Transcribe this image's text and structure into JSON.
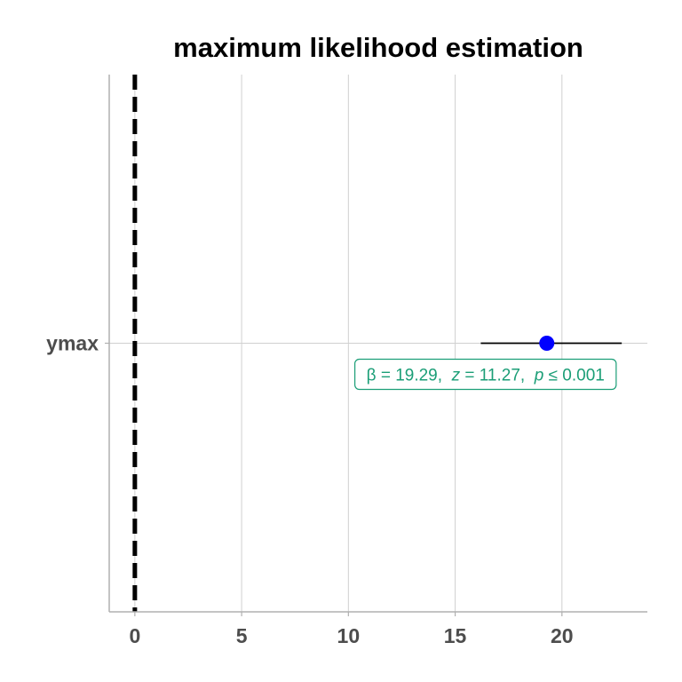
{
  "chart_data": {
    "type": "forest",
    "title": "maximum likelihood estimation",
    "xlabel": "",
    "ylabel": "",
    "xlim": [
      -1.2,
      24
    ],
    "x_ticks": [
      0,
      5,
      10,
      15,
      20
    ],
    "x_tick_labels": [
      "0",
      "5",
      "10",
      "15",
      "20"
    ],
    "categories": [
      "ymax"
    ],
    "grid": true,
    "reference_line": {
      "x": 0,
      "style": "dashed",
      "color": "#000000"
    },
    "points": [
      {
        "term": "ymax",
        "estimate": 19.29,
        "conf_low": 16.2,
        "conf_high": 22.8
      }
    ],
    "annotation": {
      "parts": [
        {
          "text": "β",
          "italic": false
        },
        {
          "text": " = 19.29,  ",
          "italic": false
        },
        {
          "text": "z",
          "italic": true
        },
        {
          "text": " = 11.27,  ",
          "italic": false
        },
        {
          "text": "p",
          "italic": true
        },
        {
          "text": " ≤ 0.001",
          "italic": false
        }
      ],
      "color": "#1b9e77"
    },
    "colors": {
      "point": "#0000ff",
      "errorbar": "#000000",
      "grid": "#d0d0d0",
      "axis": "#b0b0b0"
    }
  }
}
